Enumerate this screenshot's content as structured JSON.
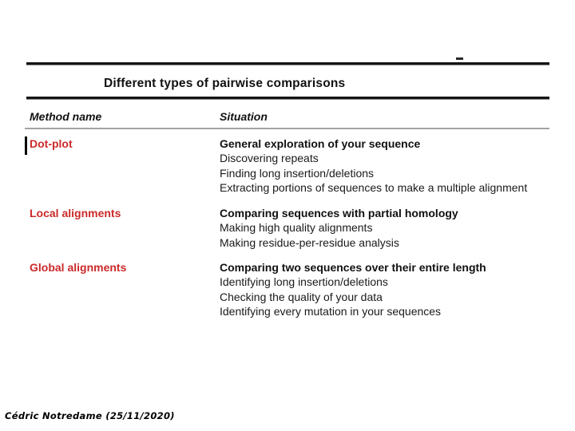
{
  "slide": {
    "title": "Different types of pairwise comparisons",
    "footer": "Cédric Notredame (25/11/2020)",
    "colors": {
      "method_name": "#cc2a2a",
      "body_text": "#1a1a1a",
      "thick_rule": "#151515",
      "thin_rule": "#a3a3a3"
    },
    "table": {
      "headers": [
        "Method name",
        "Situation"
      ],
      "rows": [
        {
          "method": "Dot-plot",
          "situations": [
            "General exploration of your sequence",
            "Discovering repeats",
            "Finding long insertion/deletions",
            "Extracting portions of sequences to make a multiple alignment"
          ]
        },
        {
          "method": "Local alignments",
          "situations": [
            "Comparing sequences with partial homology",
            "Making high quality alignments",
            "Making residue-per-residue analysis"
          ]
        },
        {
          "method": "Global alignments",
          "situations": [
            "Comparing two sequences over their entire length",
            "Identifying long insertion/deletions",
            "Checking the quality of your data",
            "Identifying every mutation in your sequences"
          ]
        }
      ]
    }
  }
}
